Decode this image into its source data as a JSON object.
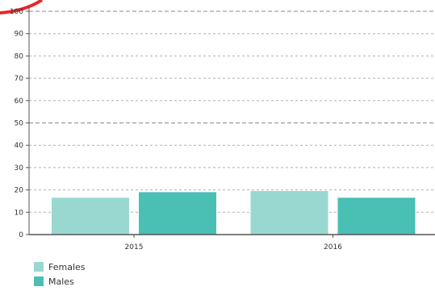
{
  "chart_data": {
    "type": "bar",
    "categories": [
      "2015",
      "2016"
    ],
    "series": [
      {
        "name": "Females",
        "values": [
          16.5,
          19.5
        ],
        "color": "#99d8d0"
      },
      {
        "name": "Males",
        "values": [
          19,
          16.5
        ],
        "color": "#4abfb4"
      }
    ],
    "title": "",
    "xlabel": "",
    "ylabel": "",
    "ylim": [
      0,
      100
    ],
    "yticks": [
      0,
      10,
      20,
      30,
      40,
      50,
      60,
      70,
      80,
      90,
      100
    ],
    "grid": true,
    "legend_position": "bottom-left"
  }
}
